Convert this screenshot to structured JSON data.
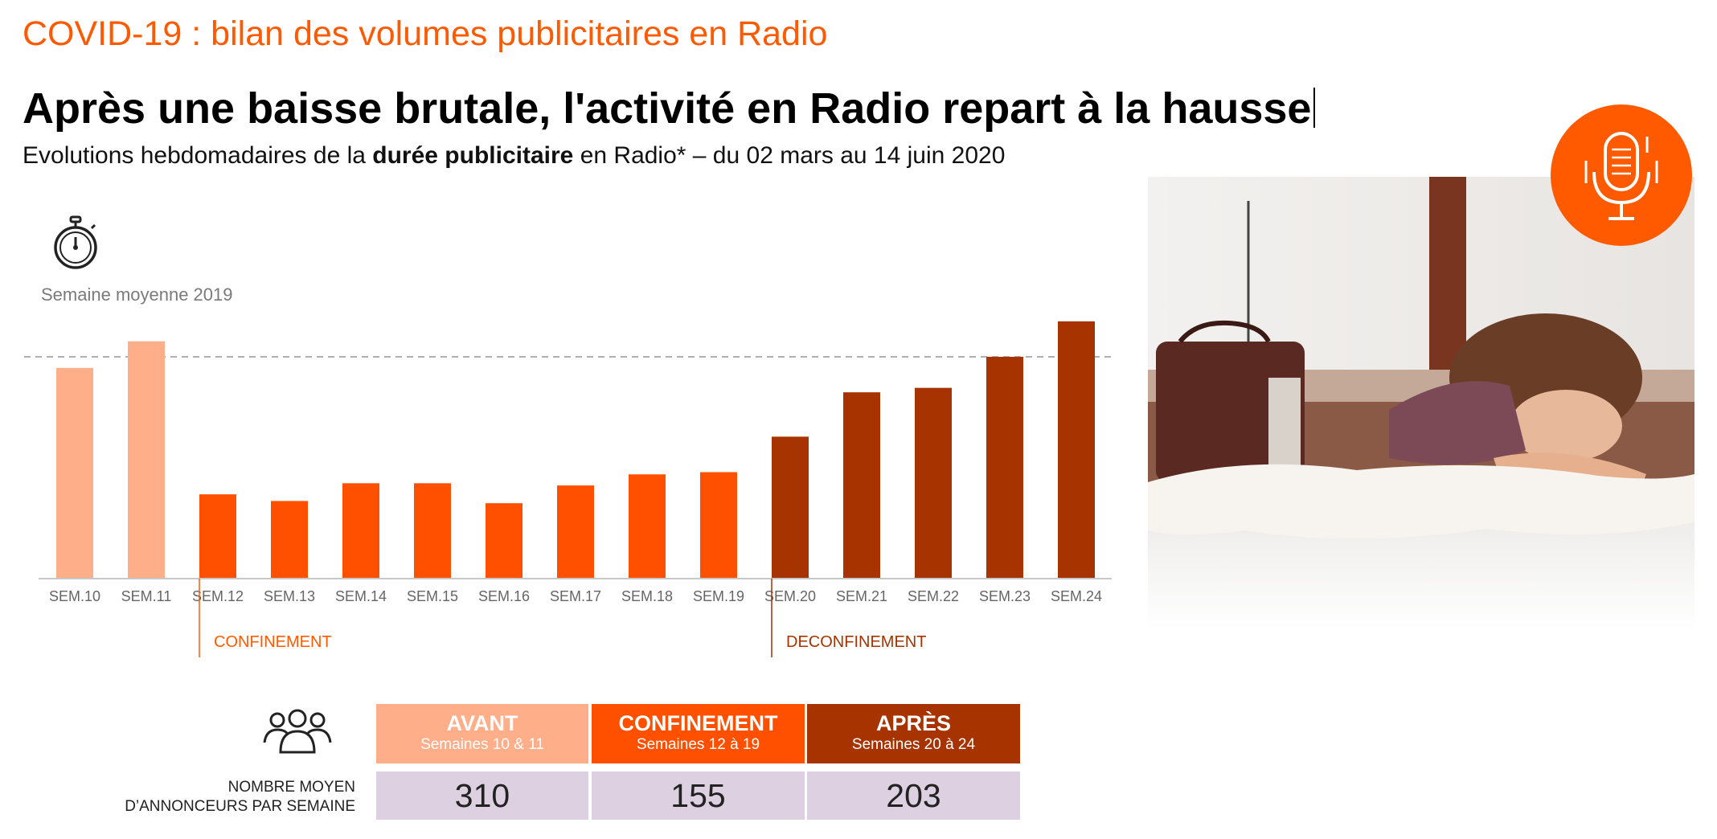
{
  "header": {
    "kicker": "COVID-19 : bilan des volumes publicitaires en Radio",
    "headline": "Après une baisse brutale, l'activité en Radio repart à la hausse",
    "subtitle_pre": "Evolutions hebdomadaires de la ",
    "subtitle_bold": "durée publicitaire",
    "subtitle_post": " en Radio* – du 02 mars au 14 juin 2020"
  },
  "chart_data": {
    "type": "bar",
    "categories": [
      "SEM.10",
      "SEM.11",
      "SEM.12",
      "SEM.13",
      "SEM.14",
      "SEM.15",
      "SEM.16",
      "SEM.17",
      "SEM.18",
      "SEM.19",
      "SEM.20",
      "SEM.21",
      "SEM.22",
      "SEM.23",
      "SEM.24"
    ],
    "values": [
      95,
      107,
      38,
      35,
      43,
      43,
      34,
      42,
      47,
      48,
      64,
      84,
      86,
      100,
      116
    ],
    "reference_value": 100,
    "reference_label": "Semaine moyenne 2019",
    "ylim": [
      0,
      115
    ],
    "bar_colors": [
      "#ffae8a",
      "#ffae8a",
      "#ff5000",
      "#ff5000",
      "#ff5000",
      "#ff5000",
      "#ff5000",
      "#ff5000",
      "#ff5000",
      "#ff5000",
      "#a63300",
      "#a63300",
      "#a63300",
      "#a63300",
      "#a63300"
    ],
    "phases": [
      {
        "label": "CONFINEMENT",
        "start_index": 2,
        "color": "#ff5a00"
      },
      {
        "label": "DECONFINEMENT",
        "start_index": 10,
        "color": "#a63300"
      }
    ],
    "grid": false
  },
  "table": {
    "row_label_line1": "NOMBRE MOYEN",
    "row_label_line2": "D’ANNONCEURS PAR SEMAINE",
    "columns": [
      {
        "title": "AVANT",
        "subtitle": "Semaines 10 & 11",
        "value": "310",
        "color": "#ffae8a"
      },
      {
        "title": "CONFINEMENT",
        "subtitle": "Semaines 12 à 19",
        "value": "155",
        "color": "#ff5000"
      },
      {
        "title": "APRÈS",
        "subtitle": "Semaines 20 à 24",
        "value": "203",
        "color": "#a63300"
      }
    ]
  },
  "icons": {
    "stopwatch": "stopwatch-icon",
    "people": "people-group-icon",
    "microphone": "microphone-icon"
  },
  "colors": {
    "accent": "#ff5a00",
    "before": "#ffae8a",
    "lockdown": "#ff5000",
    "after": "#a63300",
    "table_value_bg": "#ddd0e0"
  }
}
